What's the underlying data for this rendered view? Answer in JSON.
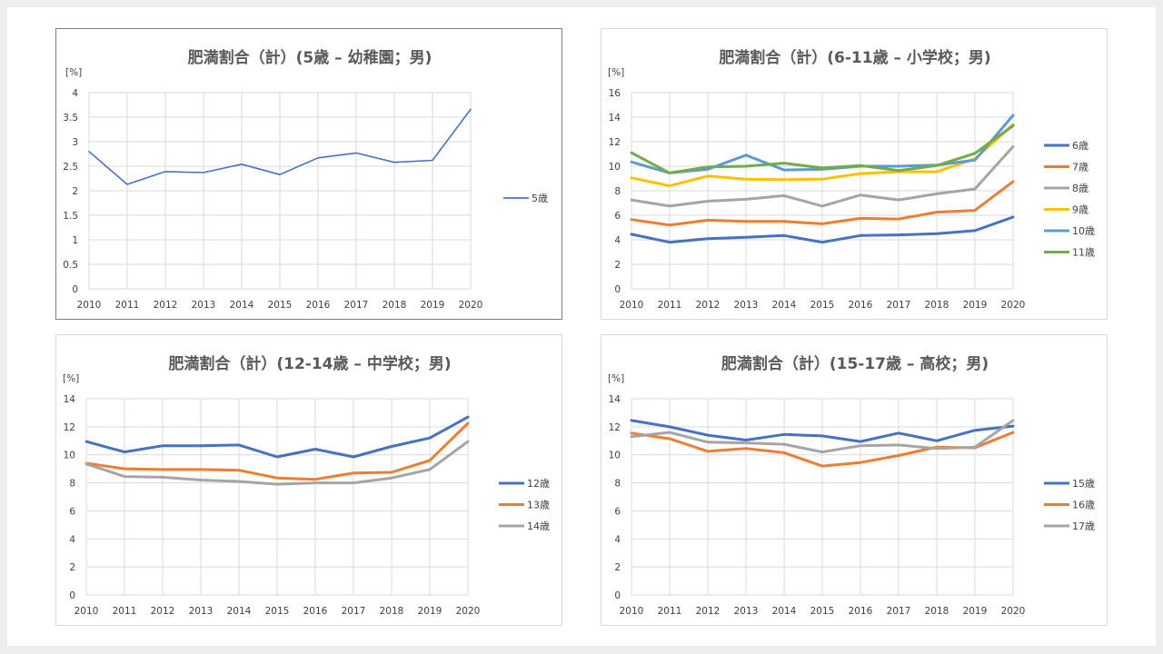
{
  "chart_data": [
    {
      "type": "line",
      "title": "肥満割合（計）(5歳 – 幼稚園；男)",
      "unit": "[%]",
      "x": [
        "2010",
        "2011",
        "2012",
        "2013",
        "2014",
        "2015",
        "2016",
        "2017",
        "2018",
        "2019",
        "2020"
      ],
      "ylim": [
        0,
        4
      ],
      "yticks": [
        "0",
        "0.5",
        "1",
        "1.5",
        "2",
        "2.5",
        "3",
        "3.5",
        "4"
      ],
      "ytick_values": [
        0,
        0.5,
        1,
        1.5,
        2,
        2.5,
        3,
        3.5,
        4
      ],
      "legend": "right",
      "grid": true,
      "series": [
        {
          "name": "5歳",
          "color": "#4472c4",
          "values": [
            2.8,
            2.13,
            2.39,
            2.37,
            2.54,
            2.33,
            2.67,
            2.77,
            2.58,
            2.62,
            3.66
          ]
        }
      ]
    },
    {
      "type": "line",
      "title": "肥満割合（計）(6-11歳 – 小学校；男)",
      "unit": "[%]",
      "x": [
        "2010",
        "2011",
        "2012",
        "2013",
        "2014",
        "2015",
        "2016",
        "2017",
        "2018",
        "2019",
        "2020"
      ],
      "ylim": [
        0,
        16
      ],
      "yticks": [
        "0",
        "2",
        "4",
        "6",
        "8",
        "10",
        "12",
        "14",
        "16"
      ],
      "ytick_values": [
        0,
        2,
        4,
        6,
        8,
        10,
        12,
        14,
        16
      ],
      "legend": "right",
      "grid": true,
      "series": [
        {
          "name": "6歳",
          "color": "#4472c4",
          "values": [
            4.45,
            3.8,
            4.1,
            4.2,
            4.35,
            3.8,
            4.35,
            4.4,
            4.5,
            4.75,
            5.85
          ]
        },
        {
          "name": "7歳",
          "color": "#ed7d31",
          "values": [
            5.65,
            5.2,
            5.6,
            5.5,
            5.5,
            5.3,
            5.75,
            5.7,
            6.25,
            6.4,
            8.75
          ]
        },
        {
          "name": "8歳",
          "color": "#a5a5a5",
          "values": [
            7.25,
            6.75,
            7.15,
            7.3,
            7.6,
            6.75,
            7.65,
            7.25,
            7.75,
            8.15,
            11.6
          ]
        },
        {
          "name": "9歳",
          "color": "#ffc000",
          "values": [
            9.05,
            8.4,
            9.2,
            8.95,
            8.9,
            8.95,
            9.4,
            9.55,
            9.55,
            10.6,
            13.4
          ]
        },
        {
          "name": "10歳",
          "color": "#5b9bd5",
          "values": [
            10.35,
            9.45,
            9.75,
            10.9,
            9.7,
            9.75,
            10.0,
            10.0,
            10.1,
            10.5,
            14.15
          ]
        },
        {
          "name": "11歳",
          "color": "#70ad47",
          "values": [
            11.1,
            9.45,
            9.95,
            10.0,
            10.25,
            9.85,
            10.05,
            9.65,
            10.05,
            11.05,
            13.3
          ]
        }
      ]
    },
    {
      "type": "line",
      "title": "肥満割合（計）(12-14歳 – 中学校；男)",
      "unit": "[%]",
      "x": [
        "2010",
        "2011",
        "2012",
        "2013",
        "2014",
        "2015",
        "2016",
        "2017",
        "2018",
        "2019",
        "2020"
      ],
      "ylim": [
        0,
        14
      ],
      "yticks": [
        "0",
        "2",
        "4",
        "6",
        "8",
        "10",
        "12",
        "14"
      ],
      "ytick_values": [
        0,
        2,
        4,
        6,
        8,
        10,
        12,
        14
      ],
      "legend": "right",
      "grid": true,
      "series": [
        {
          "name": "12歳",
          "color": "#4472c4",
          "values": [
            10.95,
            10.2,
            10.65,
            10.65,
            10.7,
            9.85,
            10.4,
            9.85,
            10.6,
            11.2,
            12.7
          ]
        },
        {
          "name": "13歳",
          "color": "#ed7d31",
          "values": [
            9.4,
            9.0,
            8.95,
            8.95,
            8.9,
            8.35,
            8.25,
            8.7,
            8.75,
            9.6,
            12.25
          ]
        },
        {
          "name": "14歳",
          "color": "#a5a5a5",
          "values": [
            9.35,
            8.45,
            8.4,
            8.2,
            8.1,
            7.9,
            8.0,
            8.0,
            8.35,
            8.95,
            10.95
          ]
        }
      ]
    },
    {
      "type": "line",
      "title": "肥満割合（計）(15-17歳 – 高校；男)",
      "unit": "[%]",
      "x": [
        "2010",
        "2011",
        "2012",
        "2013",
        "2014",
        "2015",
        "2016",
        "2017",
        "2018",
        "2019",
        "2020"
      ],
      "ylim": [
        0,
        14
      ],
      "yticks": [
        "0",
        "2",
        "4",
        "6",
        "8",
        "10",
        "12",
        "14"
      ],
      "ytick_values": [
        0,
        2,
        4,
        6,
        8,
        10,
        12,
        14
      ],
      "legend": "right",
      "grid": true,
      "series": [
        {
          "name": "15歳",
          "color": "#4472c4",
          "values": [
            12.45,
            12.0,
            11.4,
            11.05,
            11.45,
            11.35,
            10.95,
            11.55,
            11.0,
            11.75,
            12.05
          ]
        },
        {
          "name": "16歳",
          "color": "#ed7d31",
          "values": [
            11.55,
            11.15,
            10.25,
            10.45,
            10.15,
            9.2,
            9.45,
            9.95,
            10.55,
            10.5,
            11.6
          ]
        },
        {
          "name": "17歳",
          "color": "#a5a5a5",
          "values": [
            11.3,
            11.6,
            10.9,
            10.85,
            10.75,
            10.2,
            10.65,
            10.7,
            10.45,
            10.55,
            12.45
          ]
        }
      ]
    }
  ]
}
